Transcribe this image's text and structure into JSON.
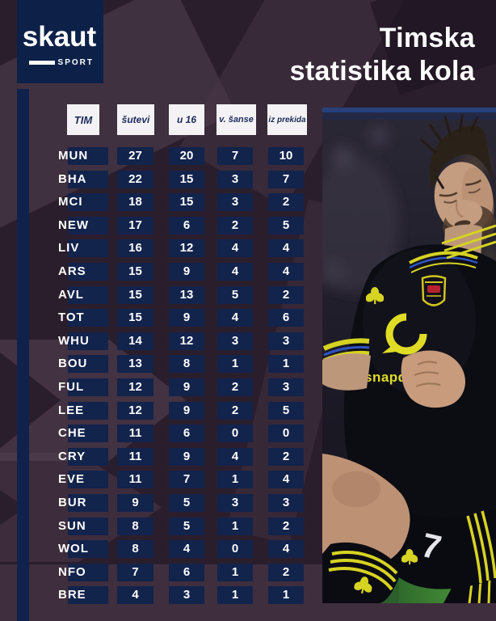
{
  "logo": {
    "brand": "skaut",
    "sub": "SPORT"
  },
  "title": {
    "line1": "Timska",
    "line2": "statistika kola"
  },
  "table": {
    "columns": [
      "TIM",
      "šutevi",
      "u 16",
      "v. šanse",
      "iz prekida"
    ],
    "rows": [
      [
        "MUN",
        "27",
        "20",
        "7",
        "10"
      ],
      [
        "BHA",
        "22",
        "15",
        "3",
        "7"
      ],
      [
        "MCI",
        "18",
        "15",
        "3",
        "2"
      ],
      [
        "NEW",
        "17",
        "6",
        "2",
        "5"
      ],
      [
        "LIV",
        "16",
        "12",
        "4",
        "4"
      ],
      [
        "ARS",
        "15",
        "9",
        "4",
        "4"
      ],
      [
        "AVL",
        "15",
        "13",
        "5",
        "2"
      ],
      [
        "TOT",
        "15",
        "9",
        "4",
        "6"
      ],
      [
        "WHU",
        "14",
        "12",
        "3",
        "3"
      ],
      [
        "BOU",
        "13",
        "8",
        "1",
        "1"
      ],
      [
        "FUL",
        "12",
        "9",
        "2",
        "3"
      ],
      [
        "LEE",
        "12",
        "9",
        "2",
        "5"
      ],
      [
        "CHE",
        "11",
        "6",
        "0",
        "0"
      ],
      [
        "CRY",
        "11",
        "9",
        "4",
        "2"
      ],
      [
        "EVE",
        "11",
        "7",
        "1",
        "4"
      ],
      [
        "BUR",
        "9",
        "5",
        "3",
        "3"
      ],
      [
        "SUN",
        "8",
        "5",
        "1",
        "2"
      ],
      [
        "WOL",
        "8",
        "4",
        "0",
        "4"
      ],
      [
        "NFO",
        "7",
        "6",
        "1",
        "2"
      ],
      [
        "BRE",
        "4",
        "3",
        "1",
        "1"
      ]
    ]
  },
  "photo": {
    "sponsor_text": "snapdro",
    "shorts_number": "7"
  },
  "colors": {
    "background": "#2b1e2c",
    "box_navy": "#12234c",
    "logo_navy": "#0d2148",
    "header_bg": "#f4f2f4",
    "header_text": "#1c2b5c",
    "kit_yellow": "#d6d322",
    "kit_blue": "#2f55c4",
    "pitch_green": "#4f9f3f"
  },
  "chart_data": {
    "type": "table",
    "title": "Timska statistika kola",
    "columns": [
      "TIM",
      "šutevi",
      "u 16",
      "v. šanse",
      "iz prekida"
    ],
    "rows": [
      [
        "MUN",
        27,
        20,
        7,
        10
      ],
      [
        "BHA",
        22,
        15,
        3,
        7
      ],
      [
        "MCI",
        18,
        15,
        3,
        2
      ],
      [
        "NEW",
        17,
        6,
        2,
        5
      ],
      [
        "LIV",
        16,
        12,
        4,
        4
      ],
      [
        "ARS",
        15,
        9,
        4,
        4
      ],
      [
        "AVL",
        15,
        13,
        5,
        2
      ],
      [
        "TOT",
        15,
        9,
        4,
        6
      ],
      [
        "WHU",
        14,
        12,
        3,
        3
      ],
      [
        "BOU",
        13,
        8,
        1,
        1
      ],
      [
        "FUL",
        12,
        9,
        2,
        3
      ],
      [
        "LEE",
        12,
        9,
        2,
        5
      ],
      [
        "CHE",
        11,
        6,
        0,
        0
      ],
      [
        "CRY",
        11,
        9,
        4,
        2
      ],
      [
        "EVE",
        11,
        7,
        1,
        4
      ],
      [
        "BUR",
        9,
        5,
        3,
        3
      ],
      [
        "SUN",
        8,
        5,
        1,
        2
      ],
      [
        "WOL",
        8,
        4,
        0,
        4
      ],
      [
        "NFO",
        7,
        6,
        1,
        2
      ],
      [
        "BRE",
        4,
        3,
        1,
        1
      ]
    ]
  }
}
